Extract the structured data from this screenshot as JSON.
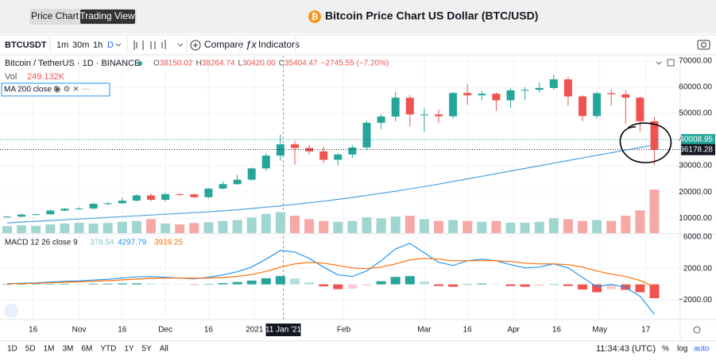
{
  "header": {
    "tabs": [
      "Price Chart",
      "Trading View"
    ],
    "active_tab": 1,
    "title": "Bitcoin Price Chart US Dollar (BTC/USD)"
  },
  "toolbar": {
    "symbol": "BTCUSDT",
    "intervals": [
      "1m",
      "30m",
      "1h",
      "D"
    ],
    "compare": "Compare",
    "indicators": "Indicators"
  },
  "legend": {
    "symbol": "Bitcoin / TetherUS · 1D · BINANCE",
    "ohlc": [
      {
        "key": "O",
        "value": "38150.02"
      },
      {
        "key": "H",
        "value": "38264.74"
      },
      {
        "key": "L",
        "value": "30420.00"
      },
      {
        "key": "C",
        "value": "35404.47"
      }
    ],
    "change": "−2745.55 (−7.20%)",
    "vol_label": "Vol",
    "vol_value": "249.132K",
    "ma": "MA 200 close 0",
    "macd_label": "MACD 12 26 close 9",
    "macd_values": [
      "378.54",
      "4297.79",
      "3919.25"
    ]
  },
  "chart_data": {
    "type": "candlestick",
    "categories": [
      null,
      null,
      null,
      null,
      null,
      null,
      null,
      null,
      null,
      null,
      null,
      null,
      null,
      null,
      null,
      null,
      null,
      null,
      null,
      null,
      null,
      null,
      null,
      null,
      null,
      null,
      null,
      null,
      null,
      null,
      null,
      null,
      null,
      null,
      null,
      null,
      null,
      null,
      null,
      null,
      null,
      null,
      null,
      null,
      null,
      null
    ],
    "open": [
      10500,
      10600,
      11400,
      11500,
      12900,
      13600,
      13700,
      15500,
      15700,
      16700,
      18700,
      17000,
      19200,
      19100,
      18000,
      21300,
      23000,
      24700,
      29000,
      33900,
      38200,
      36800,
      35500,
      32300,
      34300,
      37000,
      46400,
      48800,
      56000,
      49600,
      49600,
      48900,
      57800,
      56900,
      57500,
      55000,
      58800,
      59000,
      59700,
      63000,
      56500,
      49000,
      57700,
      57300,
      56000,
      47000
    ],
    "high": [
      10900,
      11700,
      11800,
      13300,
      14000,
      14100,
      15900,
      16200,
      17800,
      19200,
      19400,
      19600,
      19500,
      19400,
      21500,
      24000,
      26500,
      29300,
      34800,
      41900,
      39500,
      38000,
      37300,
      34800,
      38000,
      47200,
      49600,
      58300,
      57000,
      51900,
      51400,
      58100,
      61200,
      58600,
      58000,
      59800,
      60000,
      61800,
      64800,
      63900,
      57000,
      58300,
      59200,
      58900,
      56400,
      48500
    ],
    "low": [
      10400,
      10300,
      11200,
      11300,
      12700,
      13300,
      13500,
      15000,
      15500,
      16400,
      16500,
      16400,
      18500,
      17600,
      17600,
      21000,
      22700,
      24300,
      28000,
      32000,
      30500,
      34300,
      31000,
      30200,
      33000,
      36300,
      44000,
      47000,
      45000,
      43000,
      46300,
      48000,
      53300,
      55000,
      51000,
      52000,
      55000,
      58000,
      59000,
      53000,
      47000,
      48000,
      53000,
      46000,
      43000,
      30420
    ],
    "close": [
      10600,
      11400,
      11500,
      12900,
      13600,
      13700,
      15500,
      15700,
      16700,
      18700,
      17000,
      19200,
      19100,
      18000,
      21300,
      23000,
      24700,
      29000,
      33900,
      38200,
      36800,
      35500,
      32300,
      34300,
      37000,
      46400,
      48800,
      56000,
      49600,
      49600,
      48900,
      57800,
      56900,
      57500,
      55000,
      58800,
      59000,
      59700,
      63000,
      56500,
      49000,
      57700,
      57300,
      56000,
      47000,
      36178
    ],
    "up_color": "#26a69a",
    "down_color": "#ef5350",
    "volume": [
      40,
      45,
      42,
      50,
      55,
      60,
      55,
      58,
      65,
      70,
      80,
      55,
      50,
      58,
      62,
      70,
      75,
      90,
      110,
      120,
      100,
      80,
      70,
      65,
      70,
      90,
      85,
      95,
      100,
      80,
      70,
      75,
      70,
      65,
      70,
      60,
      60,
      65,
      85,
      80,
      70,
      75,
      70,
      100,
      130,
      249.132
    ],
    "ma": {
      "color": "#4aa3df",
      "values": [
        8200,
        8500,
        8800,
        9100,
        9400,
        9700,
        10000,
        10300,
        10600,
        10900,
        11200,
        11500,
        11800,
        12100,
        12400,
        12800,
        13200,
        13700,
        14200,
        14700,
        15300,
        15900,
        16500,
        17200,
        17900,
        18700,
        19500,
        20300,
        21200,
        22100,
        23000,
        24000,
        25000,
        26000,
        27000,
        28000,
        29000,
        30000,
        31000,
        32000,
        33000,
        34000,
        35000,
        36000,
        37000,
        38000
      ]
    },
    "ylim": [
      4300,
      72100
    ],
    "yticks": [
      {
        "value": 10000,
        "label": "10000.00"
      },
      {
        "value": 20000,
        "label": "20000.00"
      },
      {
        "value": 30000,
        "label": "30000.00"
      },
      {
        "value": 40000,
        "label": "40000.00"
      },
      {
        "value": 50000,
        "label": "50000.00"
      },
      {
        "value": 60000,
        "label": "60000.00"
      },
      {
        "value": 70000,
        "label": "70000.00"
      }
    ],
    "price_labels": [
      {
        "value": 40008.95,
        "color": "#26a69a"
      },
      {
        "value": 36178.28,
        "color": "#131722"
      }
    ],
    "xticks": [
      {
        "value": 1.8,
        "label": "16"
      },
      {
        "value": 5,
        "label": "Nov"
      },
      {
        "value": 8,
        "label": "16"
      },
      {
        "value": 11,
        "label": "Dec"
      },
      {
        "value": 14,
        "label": "16"
      },
      {
        "value": 17.2,
        "label": "2021"
      },
      {
        "value": 23.4,
        "label": "Feb"
      },
      {
        "value": 29,
        "label": "Mar"
      },
      {
        "value": 32,
        "label": "16"
      },
      {
        "value": 35.2,
        "label": "Apr"
      },
      {
        "value": 38.2,
        "label": "16"
      },
      {
        "value": 41.2,
        "label": "May"
      },
      {
        "value": 44.4,
        "label": "17"
      }
    ],
    "crosshair": {
      "value": 19.2,
      "label": "11 Jan '21"
    },
    "macd": {
      "ylim": [
        -4360,
        6300
      ],
      "yticks": [
        {
          "value": 6000,
          "label": "6000.00"
        },
        {
          "value": 2000,
          "label": "2000.00"
        },
        {
          "value": -2000,
          "label": "−2000.00"
        }
      ],
      "histogram": [
        10,
        25,
        30,
        50,
        65,
        60,
        75,
        85,
        115,
        140,
        120,
        50,
        0,
        -40,
        50,
        160,
        300,
        480,
        780,
        1050,
        750,
        250,
        -250,
        -600,
        -550,
        -150,
        400,
        950,
        1050,
        350,
        -200,
        -300,
        0,
        100,
        0,
        -200,
        -300,
        -200,
        0,
        -200,
        -650,
        -1000,
        -650,
        -700,
        -1000,
        -1750
      ],
      "macd": {
        "color": "#2196f3",
        "values": [
          100,
          150,
          200,
          300,
          400,
          450,
          550,
          650,
          800,
          950,
          1000,
          900,
          800,
          700,
          900,
          1200,
          1600,
          2200,
          3200,
          4300,
          4100,
          3300,
          2200,
          1200,
          1000,
          1700,
          3000,
          4500,
          5200,
          4000,
          2800,
          2400,
          3000,
          3200,
          3000,
          2500,
          2100,
          2200,
          2600,
          2100,
          900,
          -300,
          0,
          -400,
          -1500,
          -3800
        ]
      },
      "signal": {
        "color": "#ff6d00",
        "values": [
          80,
          100,
          140,
          200,
          270,
          330,
          400,
          480,
          570,
          670,
          760,
          800,
          800,
          780,
          800,
          880,
          1000,
          1250,
          1650,
          2200,
          2600,
          2800,
          2700,
          2400,
          2100,
          2000,
          2200,
          2600,
          3100,
          3300,
          3200,
          3000,
          3000,
          3000,
          3000,
          2900,
          2700,
          2600,
          2600,
          2500,
          2200,
          1700,
          1300,
          1000,
          500,
          -300
        ]
      }
    }
  },
  "footer": {
    "ranges": [
      "1D",
      "5D",
      "1M",
      "3M",
      "6M",
      "YTD",
      "1Y",
      "5Y",
      "All"
    ],
    "time": "11:34:43 (UTC)",
    "options": [
      "%",
      "log",
      "auto"
    ]
  }
}
